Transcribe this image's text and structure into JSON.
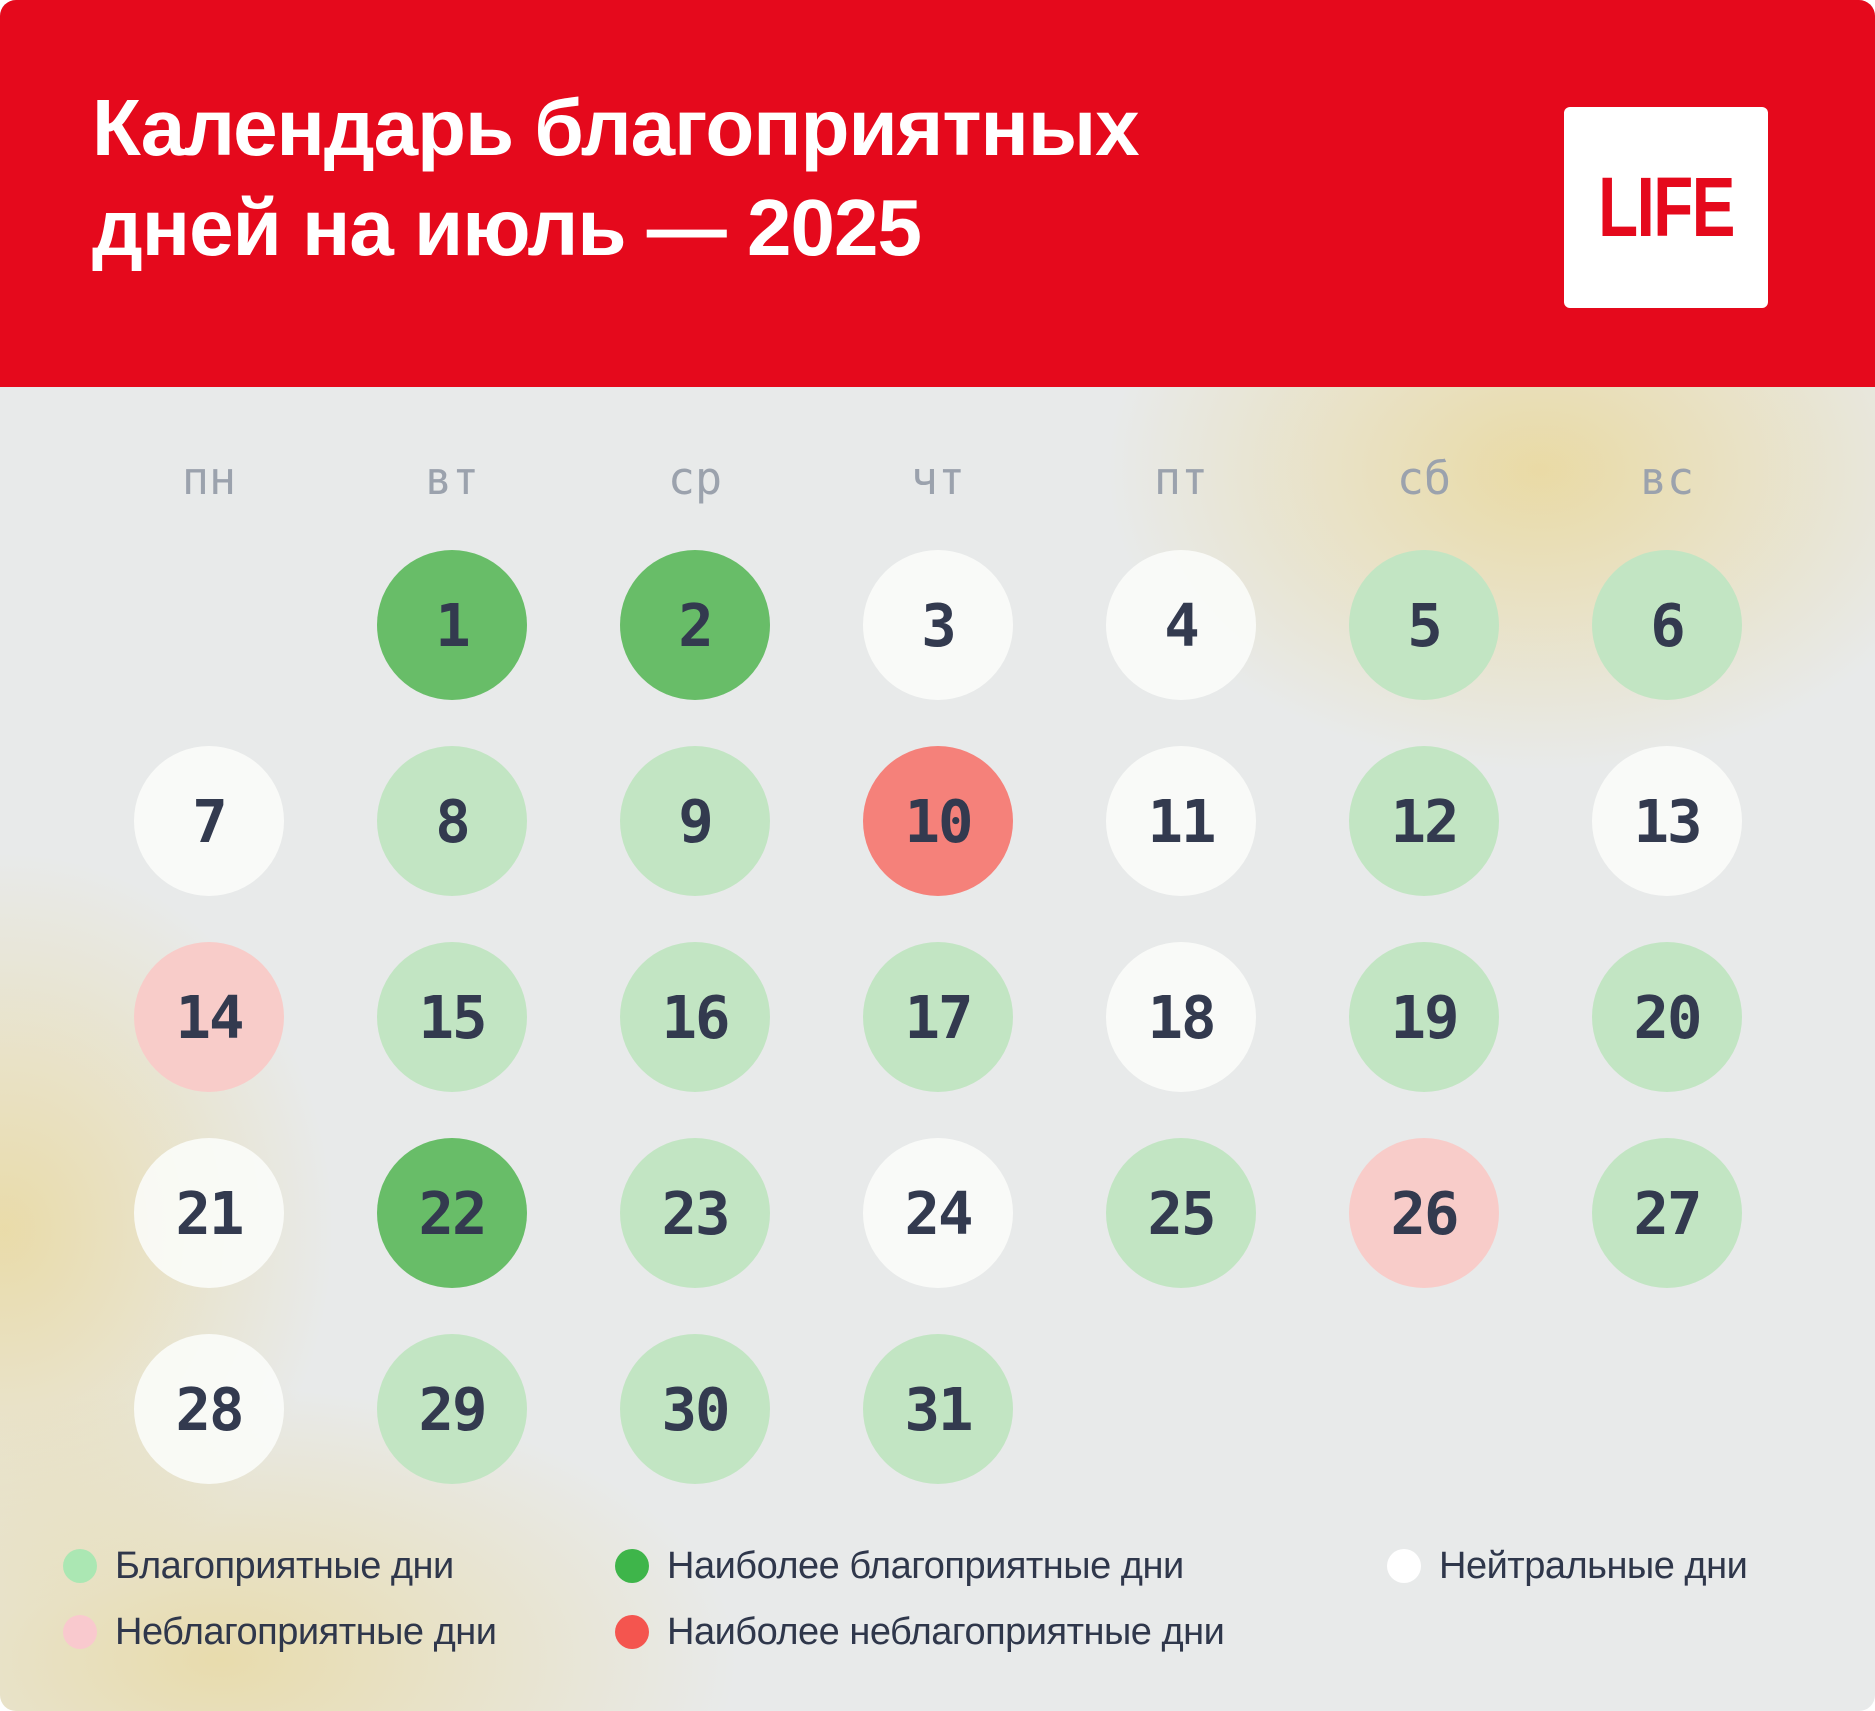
{
  "header": {
    "title_line1": "Календарь благоприятных",
    "title_line2": "дней на июль — 2025",
    "logo_text": "LIFE"
  },
  "chart_data": {
    "type": "calendar-heatmap",
    "title": "Календарь благоприятных дней на июль — 2025",
    "month": "июль 2025",
    "weekdays": [
      "пн",
      "вт",
      "ср",
      "чт",
      "пт",
      "сб",
      "вс"
    ],
    "days": [
      {
        "day": 1,
        "col": 1,
        "row": 0,
        "status": "most_favorable"
      },
      {
        "day": 2,
        "col": 2,
        "row": 0,
        "status": "most_favorable"
      },
      {
        "day": 3,
        "col": 3,
        "row": 0,
        "status": "neutral"
      },
      {
        "day": 4,
        "col": 4,
        "row": 0,
        "status": "neutral"
      },
      {
        "day": 5,
        "col": 5,
        "row": 0,
        "status": "favorable"
      },
      {
        "day": 6,
        "col": 6,
        "row": 0,
        "status": "favorable"
      },
      {
        "day": 7,
        "col": 0,
        "row": 1,
        "status": "neutral"
      },
      {
        "day": 8,
        "col": 1,
        "row": 1,
        "status": "favorable"
      },
      {
        "day": 9,
        "col": 2,
        "row": 1,
        "status": "favorable"
      },
      {
        "day": 10,
        "col": 3,
        "row": 1,
        "status": "most_unfavorable"
      },
      {
        "day": 11,
        "col": 4,
        "row": 1,
        "status": "neutral"
      },
      {
        "day": 12,
        "col": 5,
        "row": 1,
        "status": "favorable"
      },
      {
        "day": 13,
        "col": 6,
        "row": 1,
        "status": "neutral"
      },
      {
        "day": 14,
        "col": 0,
        "row": 2,
        "status": "unfavorable"
      },
      {
        "day": 15,
        "col": 1,
        "row": 2,
        "status": "favorable"
      },
      {
        "day": 16,
        "col": 2,
        "row": 2,
        "status": "favorable"
      },
      {
        "day": 17,
        "col": 3,
        "row": 2,
        "status": "favorable"
      },
      {
        "day": 18,
        "col": 4,
        "row": 2,
        "status": "neutral"
      },
      {
        "day": 19,
        "col": 5,
        "row": 2,
        "status": "favorable"
      },
      {
        "day": 20,
        "col": 6,
        "row": 2,
        "status": "favorable"
      },
      {
        "day": 21,
        "col": 0,
        "row": 3,
        "status": "neutral"
      },
      {
        "day": 22,
        "col": 1,
        "row": 3,
        "status": "most_favorable"
      },
      {
        "day": 23,
        "col": 2,
        "row": 3,
        "status": "favorable"
      },
      {
        "day": 24,
        "col": 3,
        "row": 3,
        "status": "neutral"
      },
      {
        "day": 25,
        "col": 4,
        "row": 3,
        "status": "favorable"
      },
      {
        "day": 26,
        "col": 5,
        "row": 3,
        "status": "unfavorable"
      },
      {
        "day": 27,
        "col": 6,
        "row": 3,
        "status": "favorable"
      },
      {
        "day": 28,
        "col": 0,
        "row": 4,
        "status": "neutral"
      },
      {
        "day": 29,
        "col": 1,
        "row": 4,
        "status": "favorable"
      },
      {
        "day": 30,
        "col": 2,
        "row": 4,
        "status": "favorable"
      },
      {
        "day": 31,
        "col": 3,
        "row": 4,
        "status": "favorable"
      }
    ]
  },
  "legend": [
    {
      "label": "Благоприятные дни",
      "type": "favorable",
      "col": 0,
      "row": 0
    },
    {
      "label": "Наиболее благоприятные дни",
      "type": "most_favorable",
      "col": 1,
      "row": 0
    },
    {
      "label": "Нейтральные дни",
      "type": "neutral",
      "col": 2,
      "row": 0
    },
    {
      "label": "Неблагоприятные дни",
      "type": "unfavorable",
      "col": 0,
      "row": 1
    },
    {
      "label": "Наиболее неблагоприятные дни",
      "type": "most_unfavorable",
      "col": 1,
      "row": 1
    }
  ],
  "colors": {
    "brand_red": "#e5091c",
    "background": "#e8eaea",
    "day_text": "#333a4f",
    "weekday_text": "#9ba2ad",
    "legend_text": "#2f374b",
    "favorable": "#c2e5c3",
    "most_favorable": "#68bd68",
    "neutral": "#fcfdfadd",
    "unfavorable": "#f8ccc9",
    "most_unfavorable": "#f5817a",
    "legend_favorable": "#abe7b3",
    "legend_most_favorable": "#3eb54a",
    "legend_neutral": "#ffffff",
    "legend_unfavorable": "#f9c9ce",
    "legend_most_unfavorable": "#f4554f"
  }
}
